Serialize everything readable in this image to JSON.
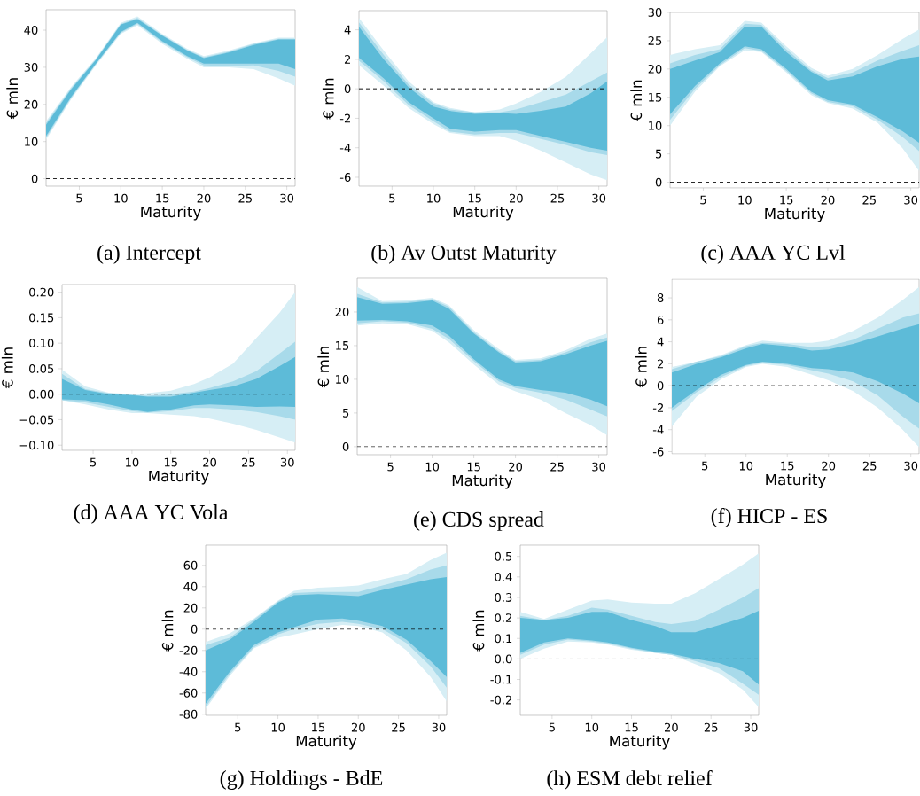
{
  "chart_data": [
    {
      "type": "line",
      "xlabel": "Maturity",
      "ylabel": "€ mln",
      "annotations": [
        "(a) Intercept"
      ],
      "x": [
        1,
        4,
        7,
        10,
        12,
        15,
        18,
        20,
        23,
        26,
        29,
        31
      ],
      "xlim": [
        1,
        31
      ],
      "xticks": [
        5,
        10,
        15,
        20,
        25,
        30
      ],
      "ylim": [
        -2,
        45.5
      ],
      "yticks": [
        0,
        10,
        20,
        30,
        40
      ],
      "ref_lines": [
        {
          "axis": "y",
          "value": 0,
          "color": "#000000",
          "line_style": "dashed"
        }
      ],
      "series": [
        {
          "color": "#d6eef5",
          "values": [
            null,
            null,
            null,
            null,
            null,
            null,
            null,
            null,
            null,
            null,
            null,
            null
          ],
          "lower": [
            10.5,
            21.3,
            30.5,
            39,
            41.3,
            36.3,
            32.3,
            30,
            30,
            29.5,
            27,
            25
          ],
          "upper": [
            15.5,
            24.7,
            32.5,
            42,
            43.7,
            39,
            35,
            33,
            34.5,
            36.5,
            38,
            38
          ]
        },
        {
          "color": "#a8daea",
          "values": [
            null,
            null,
            null,
            null,
            null,
            null,
            null,
            null,
            null,
            null,
            null,
            null
          ],
          "lower": [
            11,
            21.7,
            30.8,
            39.3,
            41.7,
            36.7,
            32.7,
            30.5,
            30.3,
            30.5,
            29,
            27.5
          ],
          "upper": [
            15,
            24.3,
            32.2,
            41.7,
            43.3,
            38.7,
            34.7,
            32.7,
            34.2,
            36.3,
            37.7,
            37.7
          ]
        },
        {
          "color": "#5dbbd8",
          "values": [
            null,
            null,
            null,
            null,
            null,
            null,
            null,
            null,
            null,
            null,
            null,
            null
          ],
          "lower": [
            11.5,
            22,
            31,
            39.5,
            42,
            37,
            33,
            31,
            31,
            31,
            31,
            29.5
          ],
          "upper": [
            14.5,
            24,
            32,
            41.5,
            43,
            38.5,
            34.5,
            32.5,
            34,
            36,
            37.5,
            37.5
          ]
        }
      ]
    },
    {
      "type": "line",
      "xlabel": "Maturity",
      "ylabel": "€ mln",
      "annotations": [
        "(b) Av Outst Maturity"
      ],
      "x": [
        1,
        4,
        7,
        10,
        12,
        15,
        18,
        20,
        23,
        26,
        29,
        31
      ],
      "xlim": [
        1,
        31
      ],
      "xticks": [
        5,
        10,
        15,
        20,
        25,
        30
      ],
      "ylim": [
        -6.6,
        5.3
      ],
      "yticks": [
        -6,
        -4,
        -2,
        0,
        2,
        4
      ],
      "ref_lines": [
        {
          "axis": "y",
          "value": 0,
          "color": "#000000",
          "line_style": "dashed"
        }
      ],
      "series": [
        {
          "color": "#d6eef5",
          "values": [
            null,
            null,
            null,
            null,
            null,
            null,
            null,
            null,
            null,
            null,
            null,
            null
          ],
          "lower": [
            1.6,
            0.2,
            -1.3,
            -2.4,
            -3.0,
            -3.2,
            -3.2,
            -3.5,
            -4.2,
            -5.0,
            -5.8,
            -6.2
          ],
          "upper": [
            4.8,
            2.6,
            0.5,
            -0.9,
            -1.3,
            -1.6,
            -1.4,
            -1.0,
            -0.2,
            0.8,
            2.4,
            3.5
          ]
        },
        {
          "color": "#a8daea",
          "values": [
            null,
            null,
            null,
            null,
            null,
            null,
            null,
            null,
            null,
            null,
            null,
            null
          ],
          "lower": [
            1.9,
            0.5,
            -1.1,
            -2.2,
            -2.9,
            -3.1,
            -3.0,
            -3.0,
            -3.4,
            -3.8,
            -4.3,
            -4.5
          ],
          "upper": [
            4.5,
            2.3,
            0.3,
            -1.0,
            -1.4,
            -1.6,
            -1.6,
            -1.4,
            -0.9,
            -0.4,
            0.5,
            1.1
          ]
        },
        {
          "color": "#5dbbd8",
          "values": [
            null,
            null,
            null,
            null,
            null,
            null,
            null,
            null,
            null,
            null,
            null,
            null
          ],
          "lower": [
            2.1,
            0.7,
            -0.9,
            -2.0,
            -2.7,
            -2.9,
            -2.8,
            -2.8,
            -3.2,
            -3.6,
            -4.0,
            -4.2
          ],
          "upper": [
            4.2,
            2.0,
            0.1,
            -1.2,
            -1.5,
            -1.7,
            -1.65,
            -1.7,
            -1.5,
            -1.2,
            -0.3,
            0.5
          ]
        }
      ]
    },
    {
      "type": "line",
      "xlabel": "Maturity",
      "ylabel": "€ mln",
      "annotations": [
        "(c) AAA YC Lvl"
      ],
      "x": [
        1,
        4,
        7,
        10,
        12,
        15,
        18,
        20,
        23,
        26,
        29,
        31
      ],
      "xlim": [
        1,
        31
      ],
      "xticks": [
        5,
        10,
        15,
        20,
        25,
        30
      ],
      "ylim": [
        -1,
        30
      ],
      "yticks": [
        0,
        5,
        10,
        15,
        20,
        25,
        30
      ],
      "ref_lines": [
        {
          "axis": "y",
          "value": 0,
          "color": "#000000",
          "line_style": "dashed"
        }
      ],
      "series": [
        {
          "color": "#d6eef5",
          "values": [
            null,
            null,
            null,
            null,
            null,
            null,
            null,
            null,
            null,
            null,
            null,
            null
          ],
          "lower": [
            10,
            16,
            20.5,
            23.3,
            23,
            19.4,
            15.4,
            14,
            13,
            10.5,
            6,
            2
          ],
          "upper": [
            22.5,
            23.5,
            24.2,
            28.5,
            28.2,
            24,
            20.2,
            18.8,
            20,
            22.5,
            25.3,
            27
          ]
        },
        {
          "color": "#a8daea",
          "values": [
            null,
            null,
            null,
            null,
            null,
            null,
            null,
            null,
            null,
            null,
            null,
            null
          ],
          "lower": [
            11,
            16.5,
            20.7,
            23.7,
            23.2,
            19.7,
            15.7,
            14.2,
            13.4,
            11,
            8,
            5.5
          ],
          "upper": [
            21,
            22.5,
            23.5,
            28,
            27.8,
            23.5,
            19.8,
            18.4,
            19.4,
            21.5,
            23.2,
            24.2
          ]
        },
        {
          "color": "#5dbbd8",
          "values": [
            null,
            null,
            null,
            null,
            null,
            null,
            null,
            null,
            null,
            null,
            null,
            null
          ],
          "lower": [
            12,
            17,
            21,
            24,
            23.5,
            20,
            16,
            14.5,
            13.7,
            11.5,
            9,
            7
          ],
          "upper": [
            20,
            21.5,
            23,
            27.5,
            27.5,
            23,
            19.5,
            18,
            18.7,
            20.5,
            21.8,
            22.2
          ]
        }
      ]
    },
    {
      "type": "line",
      "xlabel": "Maturity",
      "ylabel": "€ mln",
      "annotations": [
        "(d) AAA YC Vola"
      ],
      "x": [
        1,
        4,
        7,
        10,
        12,
        15,
        18,
        20,
        23,
        26,
        29,
        31
      ],
      "xlim": [
        1,
        31
      ],
      "xticks": [
        5,
        10,
        15,
        20,
        25,
        30
      ],
      "ylim": [
        -0.11,
        0.215
      ],
      "yticks": [
        {
          "value": -0.1,
          "label": "−0.10"
        },
        {
          "value": -0.05,
          "label": "−0.05"
        },
        {
          "value": 0,
          "label": "0.00"
        },
        {
          "value": 0.05,
          "label": "0.05"
        },
        {
          "value": 0.1,
          "label": "0.10"
        },
        {
          "value": 0.15,
          "label": "0.15"
        },
        {
          "value": 0.2,
          "label": "0.20"
        }
      ],
      "ref_lines": [
        {
          "axis": "y",
          "value": 0,
          "color": "#000000",
          "line_style": "dashed"
        }
      ],
      "series": [
        {
          "color": "#d6eef5",
          "values": [
            null,
            null,
            null,
            null,
            null,
            null,
            null,
            null,
            null,
            null,
            null,
            null
          ],
          "lower": [
            -0.012,
            -0.02,
            -0.03,
            -0.037,
            -0.037,
            -0.04,
            -0.043,
            -0.048,
            -0.058,
            -0.07,
            -0.085,
            -0.095
          ],
          "upper": [
            0.048,
            0.015,
            0.003,
            0.0,
            0.002,
            0.007,
            0.02,
            0.033,
            0.06,
            0.11,
            0.16,
            0.2
          ]
        },
        {
          "color": "#a8daea",
          "values": [
            null,
            null,
            null,
            null,
            null,
            null,
            null,
            null,
            null,
            null,
            null,
            null
          ],
          "lower": [
            -0.012,
            -0.016,
            -0.025,
            -0.033,
            -0.036,
            -0.033,
            -0.027,
            -0.027,
            -0.03,
            -0.035,
            -0.043,
            -0.05
          ],
          "upper": [
            0.04,
            0.01,
            0.002,
            -0.002,
            -0.003,
            0.0,
            0.005,
            0.012,
            0.025,
            0.045,
            0.08,
            0.103
          ]
        },
        {
          "color": "#5dbbd8",
          "values": [
            null,
            null,
            null,
            null,
            null,
            null,
            null,
            null,
            null,
            null,
            null,
            null
          ],
          "lower": [
            -0.01,
            -0.012,
            -0.02,
            -0.03,
            -0.035,
            -0.03,
            -0.022,
            -0.02,
            -0.022,
            -0.025,
            -0.024,
            -0.025
          ],
          "upper": [
            0.03,
            0.008,
            0.0,
            -0.002,
            -0.005,
            -0.005,
            0.003,
            0.008,
            0.015,
            0.03,
            0.055,
            0.073
          ]
        }
      ]
    },
    {
      "type": "line",
      "xlabel": "Maturity",
      "ylabel": "€ mln",
      "annotations": [
        "(e) CDS spread"
      ],
      "x": [
        1,
        4,
        7,
        10,
        12,
        15,
        18,
        20,
        23,
        26,
        29,
        31
      ],
      "xlim": [
        1,
        31
      ],
      "xticks": [
        5,
        10,
        15,
        20,
        25,
        30
      ],
      "ylim": [
        -1.2,
        25
      ],
      "yticks": [
        0,
        5,
        10,
        15,
        20
      ],
      "ref_lines": [
        {
          "axis": "y",
          "value": 0,
          "color": "#000000",
          "line_style": "dashed"
        }
      ],
      "series": [
        {
          "color": "#d6eef5",
          "values": [
            null,
            null,
            null,
            null,
            null,
            null,
            null,
            null,
            null,
            null,
            null,
            null
          ],
          "lower": [
            18,
            18.3,
            18.2,
            17.2,
            15.5,
            12.2,
            9.2,
            8.2,
            7,
            5,
            3.2,
            1.7
          ],
          "upper": [
            23.7,
            21.6,
            21.7,
            22.1,
            21,
            17.3,
            14.5,
            12.9,
            13.1,
            14.3,
            16,
            16.8
          ]
        },
        {
          "color": "#a8daea",
          "values": [
            null,
            null,
            null,
            null,
            null,
            null,
            null,
            null,
            null,
            null,
            null,
            null
          ],
          "lower": [
            18.3,
            18.6,
            18.4,
            17.5,
            16,
            12.7,
            9.7,
            8.7,
            8,
            7,
            5.5,
            4.5
          ],
          "upper": [
            22.7,
            21.4,
            21.5,
            21.9,
            20.8,
            17,
            14.2,
            12.7,
            12.9,
            14,
            15.5,
            16.2
          ]
        },
        {
          "color": "#5dbbd8",
          "values": [
            null,
            null,
            null,
            null,
            null,
            null,
            null,
            null,
            null,
            null,
            null,
            null
          ],
          "lower": [
            18.7,
            18.8,
            18.6,
            18,
            16.5,
            13,
            10,
            9,
            8.4,
            8,
            7,
            6
          ],
          "upper": [
            22.2,
            21.2,
            21.3,
            21.7,
            20.5,
            16.8,
            14,
            12.5,
            12.7,
            13.7,
            15,
            15.7
          ]
        }
      ]
    },
    {
      "type": "line",
      "xlabel": "Maturity",
      "ylabel": "€ mln",
      "annotations": [
        "(f) HICP - ES"
      ],
      "x": [
        1,
        4,
        7,
        10,
        12,
        15,
        18,
        20,
        23,
        26,
        29,
        31
      ],
      "xlim": [
        1,
        31
      ],
      "xticks": [
        5,
        10,
        15,
        20,
        25,
        30
      ],
      "ylim": [
        -6.2,
        9.7
      ],
      "yticks": [
        -6,
        -4,
        -2,
        0,
        2,
        4,
        6,
        8
      ],
      "ref_lines": [
        {
          "axis": "y",
          "value": 0,
          "color": "#000000",
          "line_style": "dashed"
        }
      ],
      "series": [
        {
          "color": "#d6eef5",
          "values": [
            null,
            null,
            null,
            null,
            null,
            null,
            null,
            null,
            null,
            null,
            null,
            null
          ],
          "lower": [
            -3.7,
            -1.0,
            0.6,
            1.7,
            2.0,
            1.7,
            1.0,
            0.5,
            -0.5,
            -2.0,
            -4.0,
            -5.6
          ],
          "upper": [
            1.7,
            2.2,
            2.8,
            3.7,
            4.1,
            3.9,
            3.9,
            4.1,
            5.0,
            6.2,
            7.8,
            9.0
          ]
        },
        {
          "color": "#a8daea",
          "values": [
            null,
            null,
            null,
            null,
            null,
            null,
            null,
            null,
            null,
            null,
            null,
            null
          ],
          "lower": [
            -2.3,
            -0.6,
            0.8,
            1.8,
            2.1,
            1.9,
            1.4,
            1.1,
            0.4,
            -0.9,
            -2.8,
            -3.9
          ],
          "upper": [
            1.5,
            2.2,
            2.7,
            3.6,
            3.9,
            3.8,
            3.5,
            3.6,
            4.2,
            5.2,
            6.2,
            6.6
          ]
        },
        {
          "color": "#5dbbd8",
          "values": [
            null,
            null,
            null,
            null,
            null,
            null,
            null,
            null,
            null,
            null,
            null,
            null
          ],
          "lower": [
            -2.0,
            -0.4,
            1.0,
            1.9,
            2.2,
            2.0,
            1.6,
            1.5,
            1.2,
            0.4,
            -0.7,
            -1.6
          ],
          "upper": [
            1.2,
            2.0,
            2.6,
            3.4,
            3.8,
            3.6,
            3.2,
            3.3,
            3.8,
            4.5,
            5.2,
            5.6
          ]
        }
      ]
    },
    {
      "type": "line",
      "xlabel": "Maturity",
      "ylabel": "€ mln",
      "annotations": [
        "(g) Holdings - BdE"
      ],
      "x": [
        1,
        4,
        7,
        10,
        12,
        15,
        18,
        20,
        23,
        26,
        29,
        31
      ],
      "xlim": [
        1,
        31
      ],
      "xticks": [
        5,
        10,
        15,
        20,
        25,
        30
      ],
      "ylim": [
        -81,
        79
      ],
      "yticks": [
        -80,
        -60,
        -40,
        -20,
        0,
        20,
        40,
        60
      ],
      "ref_lines": [
        {
          "axis": "y",
          "value": 0,
          "color": "#000000",
          "line_style": "dashed"
        }
      ],
      "series": [
        {
          "color": "#d6eef5",
          "values": [
            null,
            null,
            null,
            null,
            null,
            null,
            null,
            null,
            null,
            null,
            null,
            null
          ],
          "lower": [
            -75,
            -44,
            -18,
            -8,
            -5,
            0,
            4,
            3,
            -3,
            -20,
            -45,
            -68
          ],
          "upper": [
            -12,
            -4,
            10,
            27,
            36,
            39,
            40,
            41,
            47,
            52,
            65,
            72
          ]
        },
        {
          "color": "#a8daea",
          "values": [
            null,
            null,
            null,
            null,
            null,
            null,
            null,
            null,
            null,
            null,
            null,
            null
          ],
          "lower": [
            -73,
            -42,
            -17,
            -5,
            0,
            5,
            7,
            5,
            0,
            -13,
            -35,
            -55
          ],
          "upper": [
            -15,
            -8,
            9,
            26,
            34,
            35,
            35,
            35,
            41,
            47,
            56,
            60
          ]
        },
        {
          "color": "#5dbbd8",
          "values": [
            null,
            null,
            null,
            null,
            null,
            null,
            null,
            null,
            null,
            null,
            null,
            null
          ],
          "lower": [
            -70,
            -40,
            -15,
            -3,
            2,
            9,
            10,
            8,
            3,
            -10,
            -30,
            -45
          ],
          "upper": [
            -20,
            -10,
            7,
            25,
            32,
            33,
            32,
            31,
            37,
            42,
            47,
            49
          ]
        }
      ]
    },
    {
      "type": "line",
      "xlabel": "Maturity",
      "ylabel": "€ mln",
      "annotations": [
        "(h) ESM debt relief"
      ],
      "x": [
        1,
        4,
        7,
        10,
        12,
        15,
        18,
        20,
        23,
        26,
        29,
        31
      ],
      "xlim": [
        1,
        31
      ],
      "xticks": [
        5,
        10,
        15,
        20,
        25,
        30
      ],
      "ylim": [
        -0.275,
        0.555
      ],
      "yticks": [
        -0.2,
        -0.1,
        {
          "value": 0,
          "label": "0.0"
        },
        0.1,
        0.2,
        0.3,
        0.4,
        0.5
      ],
      "ref_lines": [
        {
          "axis": "y",
          "value": 0,
          "color": "#000000",
          "line_style": "dashed"
        }
      ],
      "series": [
        {
          "color": "#d6eef5",
          "values": [
            null,
            null,
            null,
            null,
            null,
            null,
            null,
            null,
            null,
            null,
            null,
            null
          ],
          "lower": [
            0.0,
            0.05,
            0.085,
            0.08,
            0.07,
            0.045,
            0.03,
            0.02,
            -0.025,
            -0.07,
            -0.15,
            -0.235
          ],
          "upper": [
            0.23,
            0.195,
            0.24,
            0.285,
            0.29,
            0.275,
            0.27,
            0.27,
            0.32,
            0.39,
            0.46,
            0.515
          ]
        },
        {
          "color": "#a8daea",
          "values": [
            null,
            null,
            null,
            null,
            null,
            null,
            null,
            null,
            null,
            null,
            null,
            null
          ],
          "lower": [
            0.02,
            0.07,
            0.095,
            0.085,
            0.075,
            0.05,
            0.03,
            0.02,
            -0.01,
            -0.045,
            -0.12,
            -0.175
          ],
          "upper": [
            0.21,
            0.19,
            0.21,
            0.25,
            0.24,
            0.21,
            0.18,
            0.17,
            0.185,
            0.24,
            0.3,
            0.345
          ]
        },
        {
          "color": "#5dbbd8",
          "values": [
            null,
            null,
            null,
            null,
            null,
            null,
            null,
            null,
            null,
            null,
            null,
            null
          ],
          "lower": [
            0.03,
            0.08,
            0.1,
            0.09,
            0.08,
            0.055,
            0.035,
            0.025,
            0.0,
            -0.02,
            -0.06,
            -0.125
          ],
          "upper": [
            0.2,
            0.19,
            0.2,
            0.23,
            0.23,
            0.19,
            0.16,
            0.13,
            0.13,
            0.165,
            0.2,
            0.235
          ]
        }
      ]
    }
  ]
}
